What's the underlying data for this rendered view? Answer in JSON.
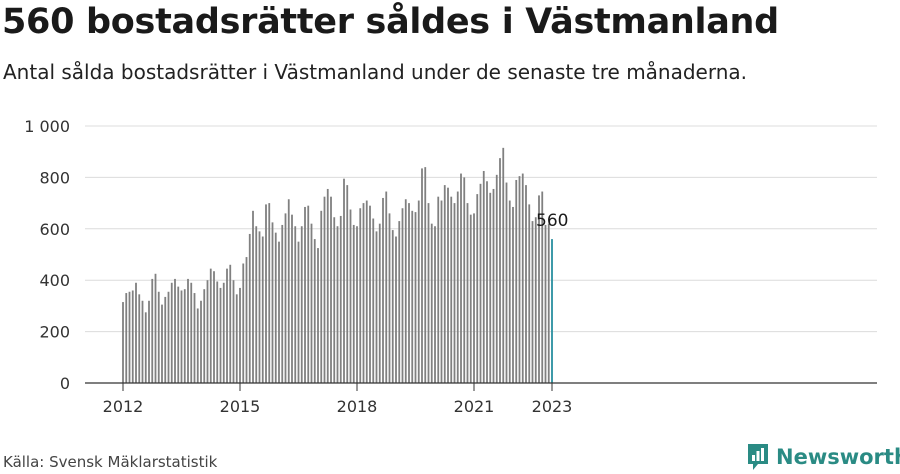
{
  "header": {
    "title": "560 bostadsrätter såldes i Västmanland",
    "subtitle": "Antal sålda bostadsrätter i Västmanland under de senaste tre månaderna."
  },
  "footer": {
    "source": "Källa: Svensk Mäklarstatistik",
    "brand": "Newsworthy"
  },
  "colors": {
    "bar": "#808080",
    "highlight": "#2a8fa0",
    "brand": "#2a8b84",
    "grid": "#dcdcdc",
    "axis": "#333333"
  },
  "icons": {
    "brand_logo": "newsworthy-logo-icon"
  },
  "chart_data": {
    "type": "bar",
    "xlabel": "",
    "ylabel": "",
    "ylim": [
      0,
      1000
    ],
    "yticks": [
      0,
      200,
      400,
      600,
      800,
      1000
    ],
    "ytick_labels": [
      "0",
      "200",
      "400",
      "600",
      "800",
      "1 000"
    ],
    "xticks": [
      "2012",
      "2015",
      "2018",
      "2021",
      "2023"
    ],
    "grid": true,
    "annotation": "560",
    "highlight_last": true,
    "series": [
      {
        "start": "2012-01",
        "frequency": "monthly",
        "values": [
          315,
          350,
          355,
          360,
          390,
          345,
          320,
          275,
          320,
          405,
          425,
          355,
          305,
          335,
          355,
          390,
          405,
          375,
          360,
          365,
          405,
          390,
          350,
          290,
          320,
          365,
          400,
          445,
          435,
          395,
          370,
          390,
          445,
          460,
          400,
          345,
          370,
          465,
          490,
          580,
          670,
          610,
          590,
          570,
          695,
          700,
          625,
          585,
          550,
          615,
          660,
          715,
          655,
          610,
          550,
          610,
          685,
          690,
          620,
          560,
          525,
          670,
          725,
          755,
          725,
          645,
          610,
          650,
          795,
          770,
          675,
          615,
          610,
          680,
          700,
          710,
          690,
          640,
          590,
          620,
          720,
          745,
          660,
          595,
          570,
          630,
          680,
          715,
          700,
          670,
          665,
          710,
          835,
          840,
          700,
          620,
          610,
          725,
          710,
          770,
          760,
          725,
          700,
          745,
          815,
          800,
          700,
          655,
          660,
          735,
          775,
          825,
          785,
          740,
          755,
          810,
          875,
          915,
          780,
          710,
          685,
          790,
          805,
          815,
          770,
          695,
          630,
          645,
          730,
          745,
          615,
          620,
          560
        ]
      }
    ]
  }
}
